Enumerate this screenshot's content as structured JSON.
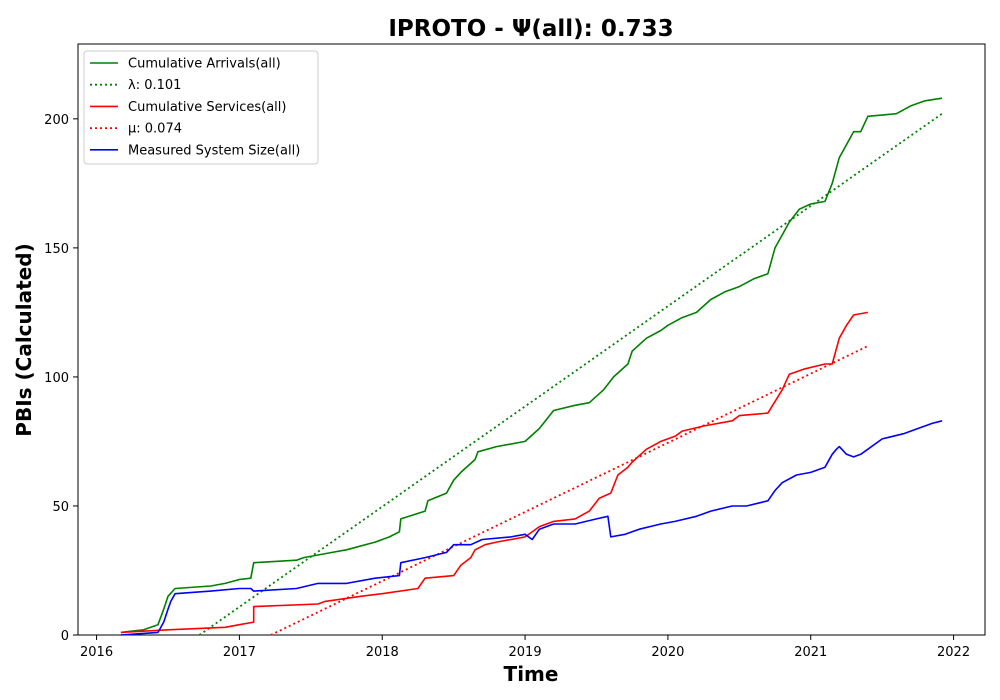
{
  "chart_data": {
    "type": "line",
    "title": "IPROTO -  Ψ(all): 0.733",
    "xlabel": "Time",
    "ylabel": "PBIs (Calculated)",
    "xlim": [
      2015.87,
      2022.22
    ],
    "ylim": [
      0,
      229
    ],
    "x_ticks": [
      2016,
      2017,
      2018,
      2019,
      2020,
      2021,
      2022
    ],
    "x_tick_labels": [
      "2016",
      "2017",
      "2018",
      "2019",
      "2020",
      "2021",
      "2022"
    ],
    "y_ticks": [
      0,
      50,
      100,
      150,
      200
    ],
    "y_tick_labels": [
      "0",
      "50",
      "100",
      "150",
      "200"
    ],
    "legend_position": "upper-left",
    "series": [
      {
        "name": "Cumulative Arrivals(all)",
        "style": "solid",
        "color": "#008000",
        "points": [
          [
            2016.17,
            1
          ],
          [
            2016.33,
            2
          ],
          [
            2016.43,
            4
          ],
          [
            2016.47,
            10
          ],
          [
            2016.5,
            15
          ],
          [
            2016.55,
            18
          ],
          [
            2016.8,
            19
          ],
          [
            2016.9,
            20
          ],
          [
            2017.0,
            21.5
          ],
          [
            2017.08,
            22
          ],
          [
            2017.1,
            28
          ],
          [
            2017.4,
            29
          ],
          [
            2017.45,
            30
          ],
          [
            2017.65,
            32
          ],
          [
            2017.75,
            33
          ],
          [
            2017.95,
            36
          ],
          [
            2018.05,
            38
          ],
          [
            2018.12,
            40
          ],
          [
            2018.13,
            45
          ],
          [
            2018.3,
            48
          ],
          [
            2018.32,
            52
          ],
          [
            2018.45,
            55
          ],
          [
            2018.5,
            60
          ],
          [
            2018.55,
            63
          ],
          [
            2018.65,
            68
          ],
          [
            2018.67,
            71
          ],
          [
            2018.8,
            73
          ],
          [
            2019.0,
            75
          ],
          [
            2019.1,
            80
          ],
          [
            2019.2,
            87
          ],
          [
            2019.35,
            89
          ],
          [
            2019.45,
            90
          ],
          [
            2019.55,
            95
          ],
          [
            2019.62,
            100
          ],
          [
            2019.72,
            105
          ],
          [
            2019.75,
            110
          ],
          [
            2019.85,
            115
          ],
          [
            2019.95,
            118
          ],
          [
            2020.0,
            120
          ],
          [
            2020.1,
            123
          ],
          [
            2020.2,
            125
          ],
          [
            2020.3,
            130
          ],
          [
            2020.4,
            133
          ],
          [
            2020.5,
            135
          ],
          [
            2020.6,
            138
          ],
          [
            2020.7,
            140
          ],
          [
            2020.75,
            150
          ],
          [
            2020.8,
            155
          ],
          [
            2020.85,
            160
          ],
          [
            2020.92,
            165
          ],
          [
            2021.0,
            167
          ],
          [
            2021.1,
            168
          ],
          [
            2021.15,
            175
          ],
          [
            2021.2,
            185
          ],
          [
            2021.25,
            190
          ],
          [
            2021.3,
            195
          ],
          [
            2021.35,
            195
          ],
          [
            2021.4,
            201
          ],
          [
            2021.6,
            202
          ],
          [
            2021.7,
            205
          ],
          [
            2021.8,
            207
          ],
          [
            2021.92,
            208
          ]
        ]
      },
      {
        "name": "λ: 0.101",
        "style": "dotted",
        "color": "#008000",
        "points": [
          [
            2016.72,
            0
          ],
          [
            2021.92,
            202
          ]
        ]
      },
      {
        "name": "Cumulative Services(all)",
        "style": "solid",
        "color": "#ff0000",
        "points": [
          [
            2016.17,
            1
          ],
          [
            2016.5,
            2
          ],
          [
            2016.9,
            3
          ],
          [
            2017.0,
            4
          ],
          [
            2017.1,
            5
          ],
          [
            2017.1,
            11
          ],
          [
            2017.55,
            12
          ],
          [
            2017.6,
            13
          ],
          [
            2017.85,
            15
          ],
          [
            2018.0,
            16
          ],
          [
            2018.25,
            18
          ],
          [
            2018.3,
            22
          ],
          [
            2018.5,
            23
          ],
          [
            2018.55,
            27
          ],
          [
            2018.62,
            30
          ],
          [
            2018.65,
            33
          ],
          [
            2018.72,
            35
          ],
          [
            2018.8,
            36
          ],
          [
            2019.0,
            38
          ],
          [
            2019.1,
            42
          ],
          [
            2019.2,
            44
          ],
          [
            2019.35,
            45
          ],
          [
            2019.45,
            48
          ],
          [
            2019.52,
            53
          ],
          [
            2019.6,
            55
          ],
          [
            2019.65,
            62
          ],
          [
            2019.72,
            65
          ],
          [
            2019.75,
            67
          ],
          [
            2019.85,
            72
          ],
          [
            2019.95,
            75
          ],
          [
            2020.05,
            77
          ],
          [
            2020.1,
            79
          ],
          [
            2020.25,
            81
          ],
          [
            2020.45,
            83
          ],
          [
            2020.5,
            85
          ],
          [
            2020.7,
            86
          ],
          [
            2020.8,
            95
          ],
          [
            2020.85,
            101
          ],
          [
            2020.95,
            103
          ],
          [
            2021.1,
            105
          ],
          [
            2021.15,
            105
          ],
          [
            2021.2,
            115
          ],
          [
            2021.25,
            120
          ],
          [
            2021.3,
            124
          ],
          [
            2021.4,
            125
          ]
        ]
      },
      {
        "name": "μ: 0.074",
        "style": "dotted",
        "color": "#ff0000",
        "points": [
          [
            2017.22,
            0
          ],
          [
            2021.4,
            112
          ]
        ]
      },
      {
        "name": "Measured System Size(all)",
        "style": "solid",
        "color": "#0000ff",
        "points": [
          [
            2016.17,
            0
          ],
          [
            2016.43,
            1
          ],
          [
            2016.47,
            5
          ],
          [
            2016.5,
            10
          ],
          [
            2016.52,
            13
          ],
          [
            2016.55,
            16
          ],
          [
            2016.8,
            17
          ],
          [
            2017.0,
            18
          ],
          [
            2017.08,
            18
          ],
          [
            2017.1,
            17
          ],
          [
            2017.4,
            18
          ],
          [
            2017.55,
            20
          ],
          [
            2017.75,
            20
          ],
          [
            2017.95,
            22
          ],
          [
            2018.12,
            23
          ],
          [
            2018.13,
            28
          ],
          [
            2018.3,
            30
          ],
          [
            2018.45,
            32
          ],
          [
            2018.5,
            35
          ],
          [
            2018.62,
            35
          ],
          [
            2018.7,
            37
          ],
          [
            2018.9,
            38
          ],
          [
            2019.0,
            39
          ],
          [
            2019.05,
            37
          ],
          [
            2019.1,
            41
          ],
          [
            2019.2,
            43
          ],
          [
            2019.35,
            43
          ],
          [
            2019.5,
            45
          ],
          [
            2019.58,
            46
          ],
          [
            2019.6,
            38
          ],
          [
            2019.7,
            39
          ],
          [
            2019.8,
            41
          ],
          [
            2019.95,
            43
          ],
          [
            2020.05,
            44
          ],
          [
            2020.2,
            46
          ],
          [
            2020.3,
            48
          ],
          [
            2020.45,
            50
          ],
          [
            2020.55,
            50
          ],
          [
            2020.7,
            52
          ],
          [
            2020.75,
            56
          ],
          [
            2020.8,
            59
          ],
          [
            2020.9,
            62
          ],
          [
            2021.0,
            63
          ],
          [
            2021.1,
            65
          ],
          [
            2021.15,
            70
          ],
          [
            2021.18,
            72
          ],
          [
            2021.2,
            73
          ],
          [
            2021.25,
            70
          ],
          [
            2021.3,
            69
          ],
          [
            2021.35,
            70
          ],
          [
            2021.4,
            72
          ],
          [
            2021.5,
            76
          ],
          [
            2021.65,
            78
          ],
          [
            2021.75,
            80
          ],
          [
            2021.85,
            82
          ],
          [
            2021.92,
            83
          ]
        ]
      }
    ]
  }
}
